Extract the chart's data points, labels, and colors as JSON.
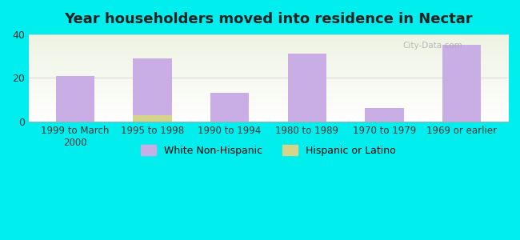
{
  "title": "Year householders moved into residence in Nectar",
  "categories": [
    "1999 to March\n2000",
    "1995 to 1998",
    "1990 to 1994",
    "1980 to 1989",
    "1970 to 1979",
    "1969 or earlier"
  ],
  "white_values": [
    21,
    29,
    13,
    31,
    6,
    35
  ],
  "hispanic_values": [
    0,
    3,
    0,
    0,
    0,
    0
  ],
  "white_color": "#c9aee5",
  "hispanic_color": "#d4d48a",
  "background_color": "#00eeee",
  "plot_bg_top": "#eef3e2",
  "plot_bg_bottom": "#ffffff",
  "ylim": [
    0,
    40
  ],
  "yticks": [
    0,
    20,
    40
  ],
  "bar_width": 0.5,
  "legend_white": "White Non-Hispanic",
  "legend_hispanic": "Hispanic or Latino"
}
